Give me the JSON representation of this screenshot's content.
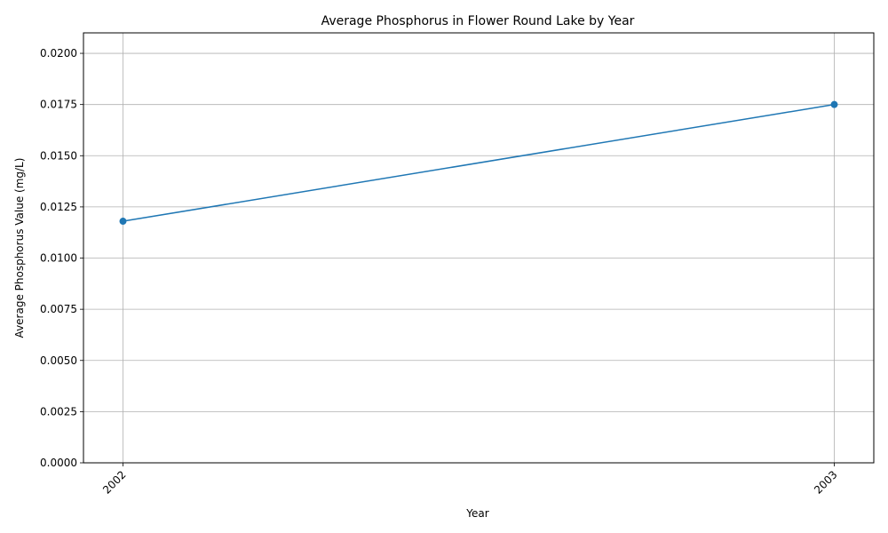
{
  "chart_data": {
    "type": "line",
    "title": "Average Phosphorus in Flower Round Lake by Year",
    "xlabel": "Year",
    "ylabel": "Average Phosphorus Value (mg/L)",
    "x": [
      "2002",
      "2003"
    ],
    "series": [
      {
        "values": [
          0.0118,
          0.0175
        ],
        "color": "#1f77b4"
      }
    ],
    "ylim": [
      0,
      0.021
    ],
    "yticks": [
      "0.0000",
      "0.0025",
      "0.0050",
      "0.0075",
      "0.0100",
      "0.0125",
      "0.0150",
      "0.0175",
      "0.0200"
    ],
    "grid": true,
    "legend": "none"
  }
}
